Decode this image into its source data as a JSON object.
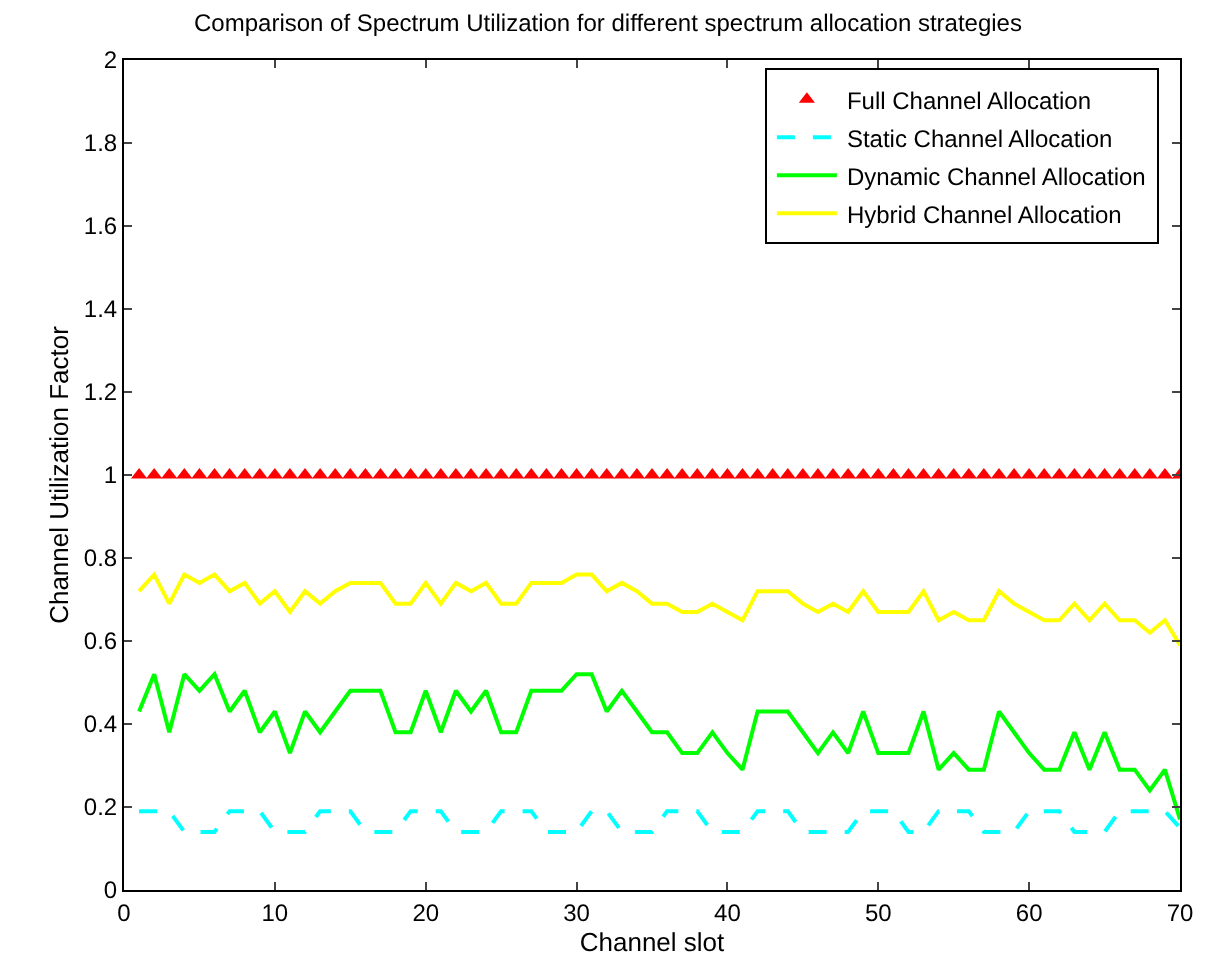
{
  "chart_data": {
    "type": "line",
    "title": "Comparison of Spectrum Utilization for different spectrum allocation strategies",
    "xlabel": "Channel slot",
    "ylabel": "Channel Utilization Factor",
    "x": [
      1,
      2,
      3,
      4,
      5,
      6,
      7,
      8,
      9,
      10,
      11,
      12,
      13,
      14,
      15,
      16,
      17,
      18,
      19,
      20,
      21,
      22,
      23,
      24,
      25,
      26,
      27,
      28,
      29,
      30,
      31,
      32,
      33,
      34,
      35,
      36,
      37,
      38,
      39,
      40,
      41,
      42,
      43,
      44,
      45,
      46,
      47,
      48,
      49,
      50,
      51,
      52,
      53,
      54,
      55,
      56,
      57,
      58,
      59,
      60,
      61,
      62,
      63,
      64,
      65,
      66,
      67,
      68,
      69,
      70
    ],
    "series": [
      {
        "name": "Full Channel Allocation",
        "type": "scatter",
        "marker": "triangle",
        "color": "#ff0000",
        "values": [
          1,
          1,
          1,
          1,
          1,
          1,
          1,
          1,
          1,
          1,
          1,
          1,
          1,
          1,
          1,
          1,
          1,
          1,
          1,
          1,
          1,
          1,
          1,
          1,
          1,
          1,
          1,
          1,
          1,
          1,
          1,
          1,
          1,
          1,
          1,
          1,
          1,
          1,
          1,
          1,
          1,
          1,
          1,
          1,
          1,
          1,
          1,
          1,
          1,
          1,
          1,
          1,
          1,
          1,
          1,
          1,
          1,
          1,
          1,
          1,
          1,
          1,
          1,
          1,
          1,
          1,
          1,
          1,
          1,
          1
        ]
      },
      {
        "name": "Static Channel Allocation",
        "line_style": "dashed",
        "color": "#00ffff",
        "values": [
          0.19,
          0.19,
          0.19,
          0.14,
          0.14,
          0.14,
          0.19,
          0.19,
          0.19,
          0.14,
          0.14,
          0.14,
          0.19,
          0.19,
          0.19,
          0.14,
          0.14,
          0.14,
          0.19,
          0.19,
          0.19,
          0.14,
          0.14,
          0.14,
          0.19,
          0.19,
          0.19,
          0.14,
          0.14,
          0.14,
          0.19,
          0.19,
          0.14,
          0.14,
          0.14,
          0.19,
          0.19,
          0.19,
          0.14,
          0.14,
          0.14,
          0.19,
          0.19,
          0.19,
          0.14,
          0.14,
          0.14,
          0.14,
          0.19,
          0.19,
          0.19,
          0.14,
          0.14,
          0.19,
          0.19,
          0.19,
          0.14,
          0.14,
          0.14,
          0.19,
          0.19,
          0.19,
          0.14,
          0.14,
          0.14,
          0.19,
          0.19,
          0.19,
          0.19,
          0.15
        ]
      },
      {
        "name": "Dynamic Channel Allocation",
        "line_style": "solid",
        "color": "#00ff00",
        "values": [
          0.43,
          0.52,
          0.38,
          0.52,
          0.48,
          0.52,
          0.43,
          0.48,
          0.38,
          0.43,
          0.33,
          0.43,
          0.38,
          0.43,
          0.48,
          0.48,
          0.48,
          0.38,
          0.38,
          0.48,
          0.38,
          0.48,
          0.43,
          0.48,
          0.38,
          0.38,
          0.48,
          0.48,
          0.48,
          0.52,
          0.52,
          0.43,
          0.48,
          0.43,
          0.38,
          0.38,
          0.33,
          0.33,
          0.38,
          0.33,
          0.29,
          0.43,
          0.43,
          0.43,
          0.38,
          0.33,
          0.38,
          0.33,
          0.43,
          0.33,
          0.33,
          0.33,
          0.43,
          0.29,
          0.33,
          0.29,
          0.29,
          0.43,
          0.38,
          0.33,
          0.29,
          0.29,
          0.38,
          0.29,
          0.38,
          0.29,
          0.29,
          0.24,
          0.29,
          0.17
        ]
      },
      {
        "name": "Hybrid Channel Allocation",
        "line_style": "solid",
        "color": "#ffff00",
        "values": [
          0.72,
          0.76,
          0.69,
          0.76,
          0.74,
          0.76,
          0.72,
          0.74,
          0.69,
          0.72,
          0.67,
          0.72,
          0.69,
          0.72,
          0.74,
          0.74,
          0.74,
          0.69,
          0.69,
          0.74,
          0.69,
          0.74,
          0.72,
          0.74,
          0.69,
          0.69,
          0.74,
          0.74,
          0.74,
          0.76,
          0.76,
          0.72,
          0.74,
          0.72,
          0.69,
          0.69,
          0.67,
          0.67,
          0.69,
          0.67,
          0.65,
          0.72,
          0.72,
          0.72,
          0.69,
          0.67,
          0.69,
          0.67,
          0.72,
          0.67,
          0.67,
          0.67,
          0.72,
          0.65,
          0.67,
          0.65,
          0.65,
          0.72,
          0.69,
          0.67,
          0.65,
          0.65,
          0.69,
          0.65,
          0.69,
          0.65,
          0.65,
          0.62,
          0.65,
          0.59
        ]
      }
    ],
    "xlim": [
      0,
      70
    ],
    "xticks": [
      0,
      10,
      20,
      30,
      40,
      50,
      60,
      70
    ],
    "ylim": [
      0,
      2
    ],
    "yticks": [
      0,
      0.2,
      0.4,
      0.6,
      0.8,
      1,
      1.2,
      1.4,
      1.6,
      1.8,
      2
    ],
    "legend": "top right"
  }
}
